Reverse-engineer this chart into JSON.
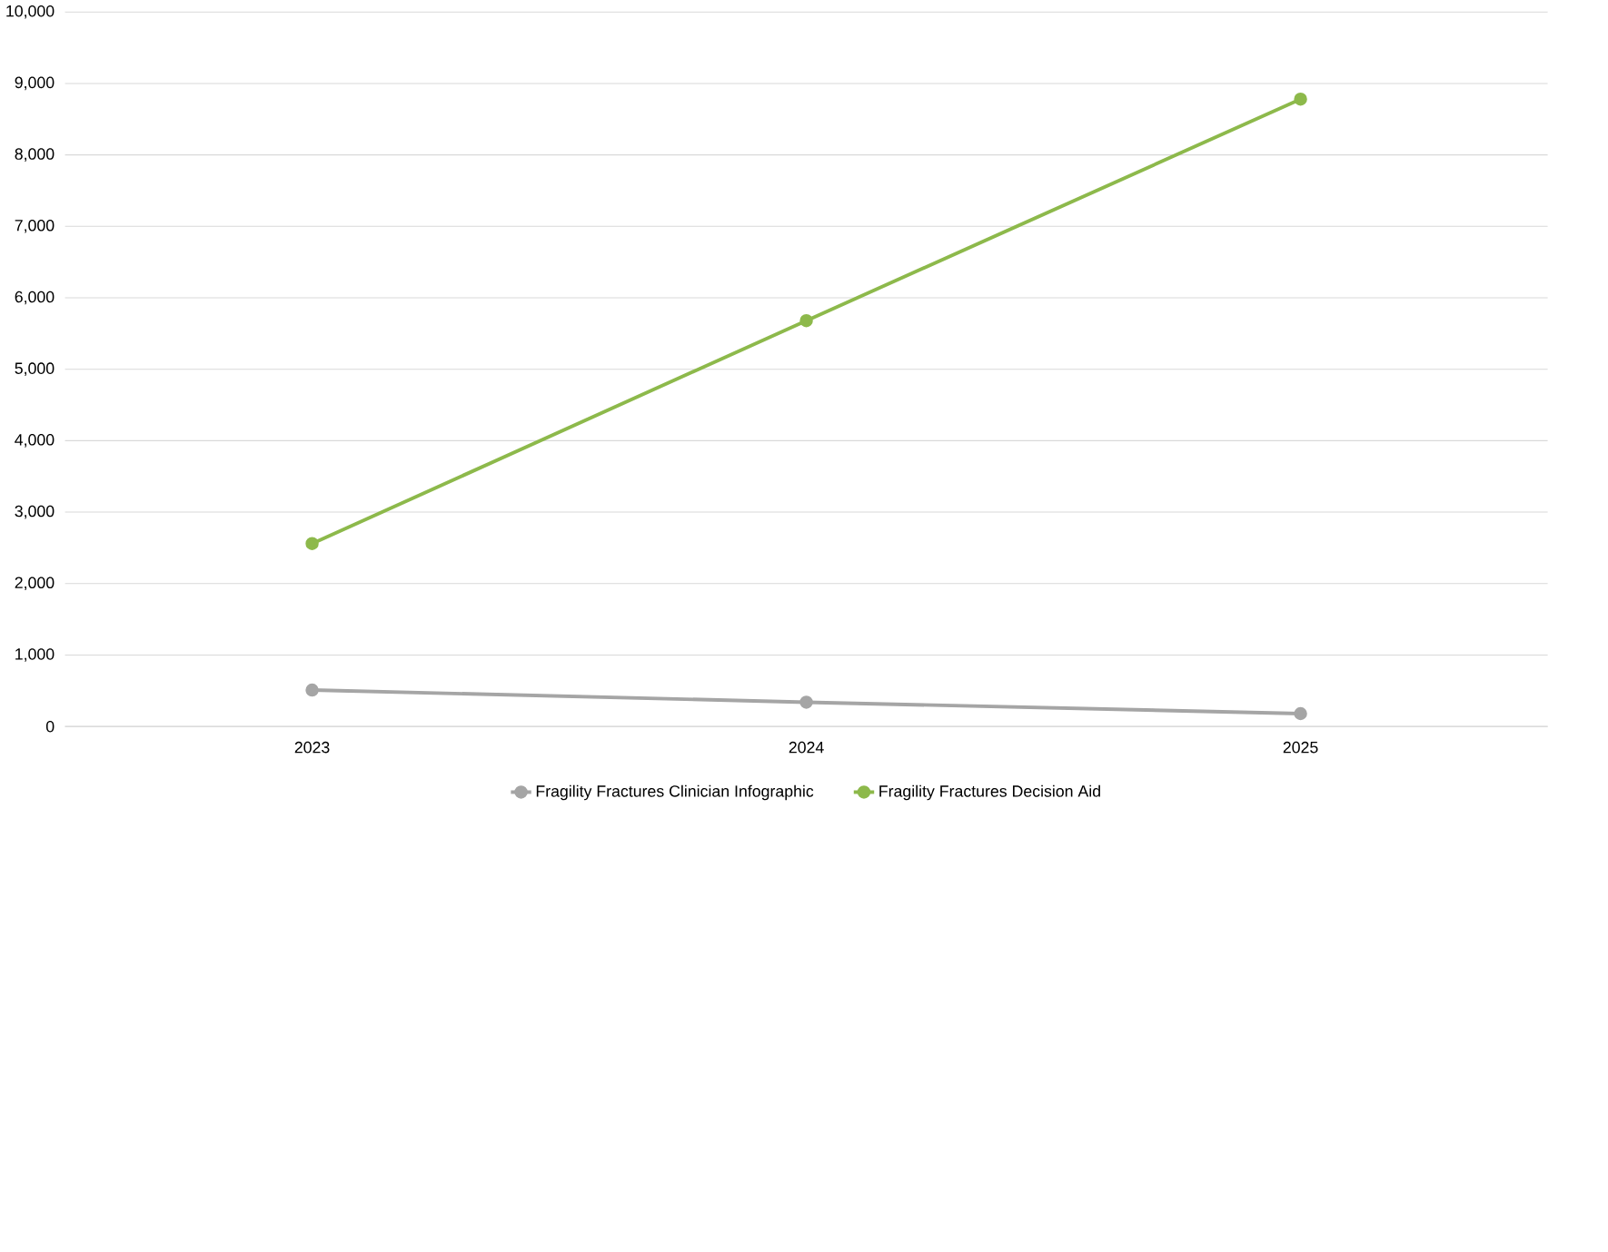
{
  "chart_data": {
    "type": "line",
    "categories": [
      "2023",
      "2024",
      "2025"
    ],
    "series": [
      {
        "name": "Fragility Fractures Clinician Infographic",
        "color": "#a5a5a5",
        "values": [
          510,
          340,
          180
        ]
      },
      {
        "name": "Fragility Fractures Decision Aid",
        "color": "#8db94b",
        "values": [
          2560,
          5680,
          8780
        ]
      }
    ],
    "ylim": [
      0,
      10000
    ],
    "yticks": [
      {
        "value": 0,
        "label": "0"
      },
      {
        "value": 1000,
        "label": "1,000"
      },
      {
        "value": 2000,
        "label": "2,000"
      },
      {
        "value": 3000,
        "label": "3,000"
      },
      {
        "value": 4000,
        "label": "4,000"
      },
      {
        "value": 5000,
        "label": "5,000"
      },
      {
        "value": 6000,
        "label": "6,000"
      },
      {
        "value": 7000,
        "label": "7,000"
      },
      {
        "value": 8000,
        "label": "8,000"
      },
      {
        "value": 9000,
        "label": "9,000"
      },
      {
        "value": 10000,
        "label": "10,000"
      }
    ],
    "grid": "y",
    "legend": "bottom",
    "marker": "circle",
    "line_style": "solid"
  }
}
